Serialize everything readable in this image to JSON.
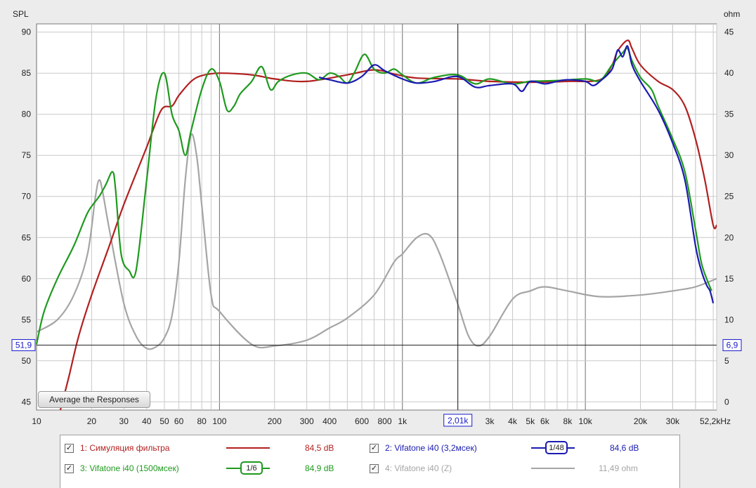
{
  "chart_data": {
    "type": "line",
    "xscale": "log",
    "xlim": [
      10,
      52200
    ],
    "ylim": [
      44,
      91
    ],
    "ylabel": "SPL",
    "y2label": "ohm",
    "y2lim": [
      -1,
      46
    ],
    "grid": true,
    "x_ticks": [
      {
        "v": 10,
        "t": "10"
      },
      {
        "v": 20,
        "t": "20"
      },
      {
        "v": 30,
        "t": "30"
      },
      {
        "v": 40,
        "t": "40"
      },
      {
        "v": 50,
        "t": "50"
      },
      {
        "v": 60,
        "t": "60"
      },
      {
        "v": 80,
        "t": "80"
      },
      {
        "v": 100,
        "t": "100"
      },
      {
        "v": 200,
        "t": "200"
      },
      {
        "v": 300,
        "t": "300"
      },
      {
        "v": 400,
        "t": "400"
      },
      {
        "v": 600,
        "t": "600"
      },
      {
        "v": 800,
        "t": "800"
      },
      {
        "v": 1000,
        "t": "1k"
      },
      {
        "v": 3000,
        "t": "3k"
      },
      {
        "v": 4000,
        "t": "4k"
      },
      {
        "v": 5000,
        "t": "5k"
      },
      {
        "v": 6000,
        "t": "6k"
      },
      {
        "v": 8000,
        "t": "8k"
      },
      {
        "v": 10000,
        "t": "10k"
      },
      {
        "v": 20000,
        "t": "20k"
      },
      {
        "v": 30000,
        "t": "30k"
      },
      {
        "v": 52200,
        "t": "52,2kHz"
      }
    ],
    "y_ticks": [
      45,
      50,
      55,
      60,
      65,
      70,
      75,
      80,
      85,
      90
    ],
    "y2_ticks": [
      0,
      5,
      10,
      15,
      20,
      25,
      30,
      35,
      40,
      45
    ],
    "cursor": {
      "x": 2010,
      "x_label": "2,01k",
      "y": 51.9,
      "y_label": "51,9",
      "y2_label": "6,9"
    },
    "series": [
      {
        "name": "1: Симуляция фильтра",
        "color": "#b21f1f",
        "axis": "left",
        "points": [
          [
            13.5,
            44
          ],
          [
            15,
            48
          ],
          [
            17,
            53
          ],
          [
            20,
            58
          ],
          [
            25,
            64
          ],
          [
            30,
            69
          ],
          [
            40,
            76
          ],
          [
            48,
            80.5
          ],
          [
            55,
            81
          ],
          [
            60,
            82.3
          ],
          [
            70,
            84
          ],
          [
            80,
            84.7
          ],
          [
            100,
            85
          ],
          [
            150,
            84.8
          ],
          [
            200,
            84.3
          ],
          [
            300,
            84
          ],
          [
            500,
            84.8
          ],
          [
            700,
            85.4
          ],
          [
            900,
            84.9
          ],
          [
            1200,
            84.4
          ],
          [
            2000,
            84.3
          ],
          [
            3000,
            84
          ],
          [
            5000,
            83.9
          ],
          [
            8000,
            84
          ],
          [
            12000,
            84.2
          ],
          [
            14000,
            86
          ],
          [
            15000,
            87.7
          ],
          [
            17000,
            89
          ],
          [
            18000,
            88
          ],
          [
            20000,
            86
          ],
          [
            25000,
            84
          ],
          [
            30000,
            83
          ],
          [
            35000,
            81
          ],
          [
            40000,
            77
          ],
          [
            45000,
            72
          ],
          [
            50000,
            66.5
          ],
          [
            52200,
            66.5
          ]
        ]
      },
      {
        "name": "3: Vifatone i40 (1500мсек)",
        "color": "#1e9a1e",
        "axis": "left",
        "points": [
          [
            10,
            52
          ],
          [
            11,
            56
          ],
          [
            13,
            60
          ],
          [
            16,
            64
          ],
          [
            19,
            68
          ],
          [
            22,
            70
          ],
          [
            24,
            71.5
          ],
          [
            26,
            73
          ],
          [
            27,
            71
          ],
          [
            29,
            63
          ],
          [
            32,
            61
          ],
          [
            35,
            61
          ],
          [
            40,
            72
          ],
          [
            45,
            82
          ],
          [
            50,
            85
          ],
          [
            55,
            80
          ],
          [
            60,
            78
          ],
          [
            65,
            75
          ],
          [
            70,
            78
          ],
          [
            80,
            83
          ],
          [
            90,
            85.5
          ],
          [
            100,
            84
          ],
          [
            110,
            80.5
          ],
          [
            120,
            81
          ],
          [
            130,
            82.5
          ],
          [
            150,
            84
          ],
          [
            170,
            85.8
          ],
          [
            190,
            83
          ],
          [
            210,
            84
          ],
          [
            250,
            84.8
          ],
          [
            300,
            85
          ],
          [
            350,
            84.2
          ],
          [
            400,
            85
          ],
          [
            450,
            84.6
          ],
          [
            500,
            83.8
          ],
          [
            550,
            85.2
          ],
          [
            620,
            87.3
          ],
          [
            700,
            85.5
          ],
          [
            800,
            85
          ],
          [
            900,
            85.5
          ],
          [
            1000,
            84.8
          ],
          [
            1200,
            83.8
          ],
          [
            1500,
            84.5
          ],
          [
            2000,
            84.8
          ],
          [
            2500,
            83.7
          ],
          [
            3000,
            84.3
          ],
          [
            4000,
            83.7
          ],
          [
            5000,
            84
          ],
          [
            7000,
            84.1
          ],
          [
            10000,
            84.3
          ],
          [
            12000,
            84.1
          ],
          [
            14000,
            86
          ],
          [
            16000,
            87.5
          ],
          [
            17000,
            88
          ],
          [
            18000,
            86.5
          ],
          [
            20000,
            84.5
          ],
          [
            23000,
            83
          ],
          [
            25000,
            81
          ],
          [
            30000,
            77
          ],
          [
            35000,
            73
          ],
          [
            40000,
            66
          ],
          [
            43000,
            62
          ],
          [
            46000,
            60
          ],
          [
            49000,
            58.5
          ]
        ]
      },
      {
        "name": "2: Vifatone i40 (3,2мсек)",
        "color": "#1a1ab0",
        "axis": "left",
        "smoothing": "1/48",
        "points": [
          [
            350,
            84.5
          ],
          [
            400,
            84.2
          ],
          [
            500,
            83.8
          ],
          [
            600,
            84.6
          ],
          [
            700,
            86
          ],
          [
            800,
            85.3
          ],
          [
            1000,
            84.3
          ],
          [
            1200,
            83.8
          ],
          [
            1500,
            84
          ],
          [
            2000,
            84.6
          ],
          [
            2500,
            83.3
          ],
          [
            3000,
            83.5
          ],
          [
            4000,
            83.7
          ],
          [
            4500,
            82.8
          ],
          [
            5000,
            84
          ],
          [
            6000,
            83.7
          ],
          [
            7000,
            84
          ],
          [
            8000,
            84.2
          ],
          [
            10000,
            84
          ],
          [
            11000,
            83.5
          ],
          [
            12000,
            84
          ],
          [
            14000,
            85.5
          ],
          [
            15000,
            87.8
          ],
          [
            16000,
            87
          ],
          [
            17000,
            88.3
          ],
          [
            18000,
            86
          ],
          [
            20000,
            84
          ],
          [
            25000,
            80.5
          ],
          [
            30000,
            76.5
          ],
          [
            35000,
            72
          ],
          [
            40000,
            64
          ],
          [
            43000,
            61
          ],
          [
            46000,
            59.2
          ],
          [
            48000,
            58.5
          ],
          [
            50000,
            57
          ]
        ]
      },
      {
        "name": "4: Vifatone i40 (Z)",
        "color": "#a5a5a5",
        "axis": "right",
        "points": [
          [
            10,
            8.5
          ],
          [
            13,
            10
          ],
          [
            16,
            13
          ],
          [
            19,
            18
          ],
          [
            21,
            25
          ],
          [
            22,
            27
          ],
          [
            23,
            25.5
          ],
          [
            25,
            21
          ],
          [
            30,
            12
          ],
          [
            35,
            8
          ],
          [
            40,
            6.5
          ],
          [
            45,
            6.7
          ],
          [
            50,
            7.8
          ],
          [
            55,
            10.5
          ],
          [
            60,
            17
          ],
          [
            65,
            27
          ],
          [
            70,
            32.5
          ],
          [
            75,
            30
          ],
          [
            80,
            24
          ],
          [
            90,
            13
          ],
          [
            100,
            11
          ],
          [
            150,
            7
          ],
          [
            200,
            6.8
          ],
          [
            300,
            7.5
          ],
          [
            400,
            9
          ],
          [
            500,
            10.2
          ],
          [
            700,
            13
          ],
          [
            900,
            17
          ],
          [
            1000,
            18
          ],
          [
            1200,
            20
          ],
          [
            1400,
            20.3
          ],
          [
            1600,
            18
          ],
          [
            2000,
            12
          ],
          [
            2300,
            8
          ],
          [
            2600,
            6.8
          ],
          [
            3000,
            8
          ],
          [
            4000,
            12.5
          ],
          [
            5000,
            13.5
          ],
          [
            6000,
            14
          ],
          [
            8000,
            13.5
          ],
          [
            12000,
            12.8
          ],
          [
            20000,
            13
          ],
          [
            30000,
            13.5
          ],
          [
            40000,
            14
          ],
          [
            52200,
            15
          ]
        ]
      }
    ]
  },
  "average_button": "Average the Responses",
  "legend": [
    {
      "id": "s1",
      "checked": true,
      "name": "1: Симуляция фильтра",
      "value": "84,5 dB",
      "color": "#b21f1f",
      "smoothing": "",
      "enabled": true
    },
    {
      "id": "s2",
      "checked": true,
      "name": "2: Vifatone i40 (3,2мсек)",
      "value": "84,6 dB",
      "color": "#1a1ab0",
      "smoothing": "1/48",
      "enabled": true
    },
    {
      "id": "s3",
      "checked": true,
      "name": "3: Vifatone i40 (1500мсек)",
      "value": "84,9 dB",
      "color": "#1e9a1e",
      "smoothing": "1/6",
      "enabled": true
    },
    {
      "id": "s4",
      "checked": true,
      "name": "4: Vifatone i40 (Z)",
      "value": "11,49 ohm",
      "color": "#a5a5a5",
      "smoothing": "",
      "enabled": false
    }
  ],
  "checkmark": "✓"
}
